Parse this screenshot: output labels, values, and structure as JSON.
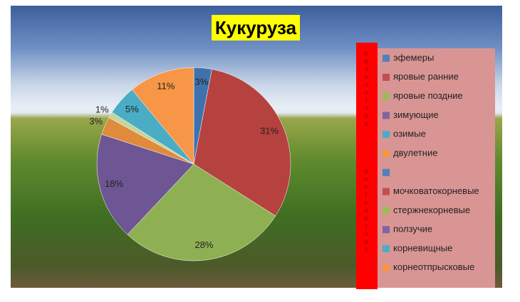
{
  "chart_data": {
    "type": "pie",
    "title": "Кукуруза",
    "values": [
      3,
      31,
      28,
      18,
      3,
      1,
      5,
      11
    ],
    "value_labels": [
      "3%",
      "31%",
      "28%",
      "18%",
      "3%",
      "1%",
      "5%",
      "11%"
    ],
    "colors": [
      "#3f72ad",
      "#b5423f",
      "#8fb052",
      "#6e5694",
      "#e08a3c",
      "#c3d69b",
      "#4bacc6",
      "#f79646"
    ],
    "legend": {
      "names": [
        "эфемеры",
        "яровые ранние",
        "яровые поздние",
        "зимующие",
        "озимые",
        "двулетние",
        null,
        "мочковатокорневые",
        "стержнекорневые",
        "ползучие",
        "корневищные",
        "корнеотпрысковые"
      ],
      "colors": [
        "#4f81bd",
        "#c0504d",
        "#9bbb59",
        "#8064a2",
        "#4bacc6",
        "#f79646",
        "#4f81bd",
        "#c0504d",
        "#9bbb59",
        "#8064a2",
        "#4bacc6",
        "#f79646"
      ]
    },
    "group_labels": [
      "малолетние",
      "многолетние"
    ]
  }
}
